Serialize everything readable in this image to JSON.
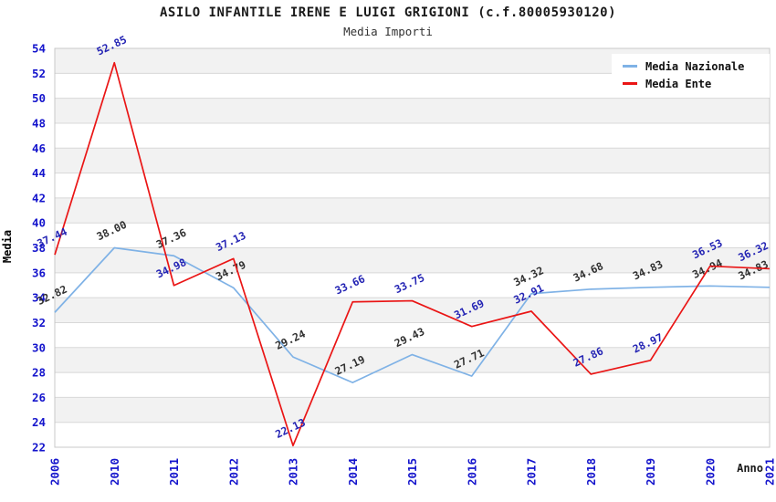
{
  "header": {
    "title": "ASILO INFANTILE IRENE E LUIGI GRIGIONI (c.f.80005930120)",
    "subtitle": "Media Importi"
  },
  "chart_data": {
    "type": "line",
    "title": "ASILO INFANTILE IRENE E LUIGI GRIGIONI (c.f.80005930120)",
    "subtitle": "Media Importi",
    "xlabel": "Anno",
    "ylabel": "Media",
    "ylim": [
      22,
      54
    ],
    "ytick_step": 2,
    "grid": "horizontal-bands",
    "legend_position": "top-right",
    "categories": [
      "2006",
      "2010",
      "2011",
      "2012",
      "2013",
      "2014",
      "2015",
      "2016",
      "2017",
      "2018",
      "2019",
      "2020",
      "2021"
    ],
    "series": [
      {
        "name": "Media Nazionale",
        "color": "#7fb2e6",
        "label_color": "#303030",
        "values": [
          32.82,
          38.0,
          37.36,
          34.79,
          29.24,
          27.19,
          29.43,
          27.71,
          34.32,
          34.68,
          34.83,
          34.94,
          34.83
        ]
      },
      {
        "name": "Media Ente",
        "color": "#ea1515",
        "label_color": "#2424b4",
        "values": [
          37.44,
          52.85,
          34.98,
          37.13,
          22.13,
          33.66,
          33.75,
          31.69,
          32.91,
          27.86,
          28.97,
          36.53,
          36.32
        ]
      }
    ],
    "colors": {
      "tick_label": "#1414cc",
      "grid_line": "#d8d8d8",
      "band_fill": "#f2f2f2",
      "plot_background": "#ffffff",
      "plot_border": "#c8c8c8"
    }
  }
}
